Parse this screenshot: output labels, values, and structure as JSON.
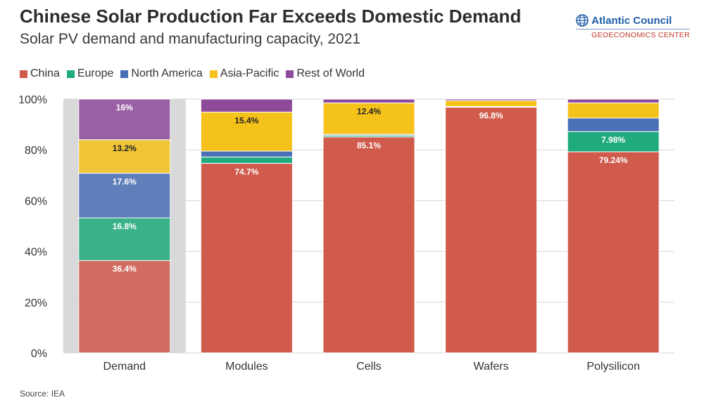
{
  "header": {
    "title": "Chinese Solar Production Far Exceeds Domestic Demand",
    "subtitle": "Solar PV demand and manufacturing capacity, 2021"
  },
  "logo": {
    "name": "Atlantic Council",
    "sub": "GEOECONOMICS CENTER",
    "icon": "globe-icon"
  },
  "source": "Source: IEA",
  "colors": {
    "China": "#d05a4b",
    "Europe": "#1fab7e",
    "North America": "#4a6fb5",
    "Asia-Pacific": "#f5c21b",
    "Rest of World": "#8e4b9c",
    "highlight_band": "#d9d9d9",
    "grid": "#d6d6d6"
  },
  "chart_data": {
    "type": "bar",
    "stacked": true,
    "categories": [
      "Demand",
      "Modules",
      "Cells",
      "Wafers",
      "Polysilicon"
    ],
    "highlight_category": "Demand",
    "ylim": [
      0,
      100
    ],
    "yticks": [
      "0%",
      "20%",
      "40%",
      "60%",
      "80%",
      "100%"
    ],
    "legend_position": "top-left",
    "series": [
      {
        "name": "China",
        "values": [
          36.4,
          74.7,
          85.1,
          96.8,
          79.24
        ],
        "labels": [
          "36.4%",
          "74.7%",
          "85.1%",
          "96.8%",
          "79.24%"
        ]
      },
      {
        "name": "Europe",
        "values": [
          16.8,
          2.5,
          0.6,
          0.2,
          7.98
        ],
        "labels": [
          "16.8%",
          "",
          "",
          "",
          "7.98%"
        ]
      },
      {
        "name": "North America",
        "values": [
          17.6,
          2.3,
          0.4,
          0.1,
          5.3
        ],
        "labels": [
          "17.6%",
          "",
          "",
          "",
          ""
        ]
      },
      {
        "name": "Asia-Pacific",
        "values": [
          13.2,
          15.4,
          12.4,
          2.3,
          6.0
        ],
        "labels": [
          "13.2%",
          "15.4%",
          "12.4%",
          "",
          ""
        ]
      },
      {
        "name": "Rest of World",
        "values": [
          16.0,
          5.1,
          1.5,
          0.6,
          1.48
        ],
        "labels": [
          "16%",
          "",
          "",
          "",
          ""
        ]
      }
    ]
  }
}
